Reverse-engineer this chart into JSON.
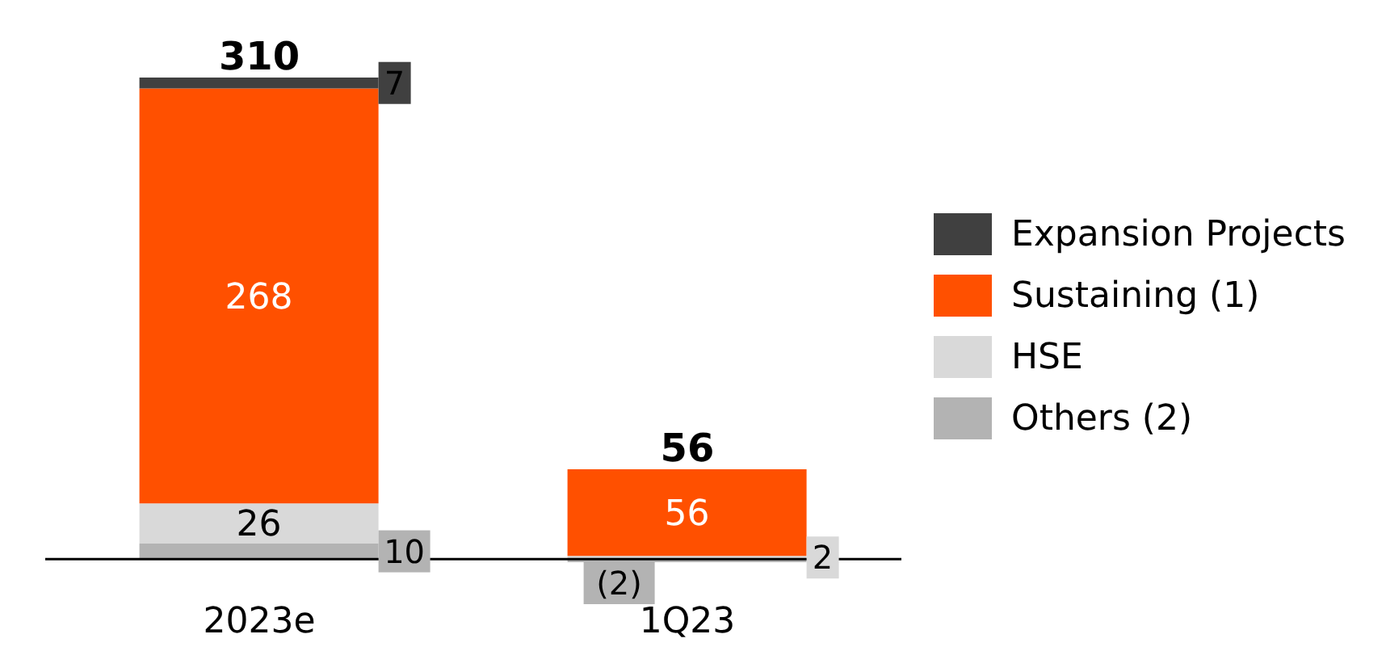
{
  "chart_data": {
    "type": "bar",
    "stacked": true,
    "categories": [
      "2023e",
      "1Q23"
    ],
    "series": [
      {
        "name": "Others (2)",
        "color": "#b3b3b3",
        "values": [
          10,
          -2
        ],
        "value_labels": [
          "10",
          "(2)"
        ]
      },
      {
        "name": "HSE",
        "color": "#d9d9d9",
        "values": [
          26,
          2
        ],
        "value_labels": [
          "26",
          "2"
        ]
      },
      {
        "name": "Sustaining (1)",
        "color": "#ff5000",
        "values": [
          268,
          56
        ],
        "value_labels": [
          "268",
          "56"
        ]
      },
      {
        "name": "Expansion Projects",
        "color": "#404040",
        "values": [
          7,
          null
        ],
        "value_labels": [
          "7",
          null
        ]
      }
    ],
    "totals": [
      "310",
      "56"
    ],
    "legend": "right",
    "grid": false
  }
}
